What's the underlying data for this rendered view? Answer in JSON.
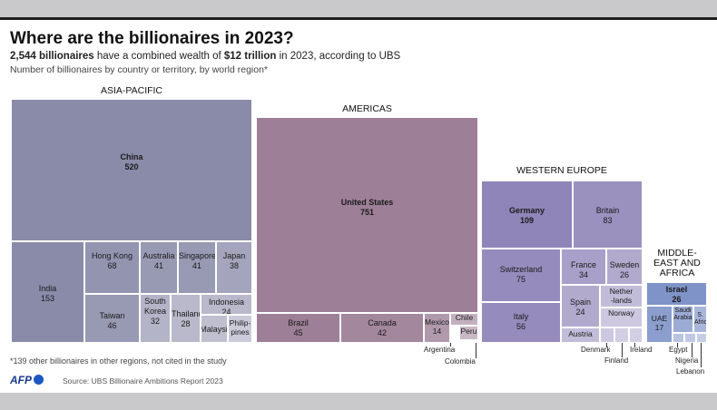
{
  "header": {
    "title": "Where are the billionaires in 2023?",
    "subtitle_count": "2,544 billionaires",
    "subtitle_mid": " have a combined wealth of ",
    "subtitle_wealth": "$12 trillion",
    "subtitle_end": " in 2023, according to UBS",
    "description": "Number of billionaires by country or territory, by world region*"
  },
  "footer": {
    "footnote": "*139 other billionaires in other regions, not cited in the study",
    "logo": "AFP",
    "source": "Source: UBS Billionaire Ambitions Report 2023"
  },
  "colors": {
    "asia": "#8a8ba9",
    "americas": "#9d7f97",
    "europe": "#8f85b8",
    "mea": "#7f93c8"
  },
  "chart_data": {
    "type": "treemap",
    "title": "Where are the billionaires in 2023?",
    "total_billionaires": 2544,
    "regions": [
      {
        "name": "ASIA-PACIFIC",
        "items": [
          {
            "label": "China",
            "value": 520,
            "bold": true
          },
          {
            "label": "India",
            "value": 153
          },
          {
            "label": "Hong Kong",
            "value": 68
          },
          {
            "label": "Australia",
            "value": 41
          },
          {
            "label": "Singapore",
            "value": 41
          },
          {
            "label": "Japan",
            "value": 38
          },
          {
            "label": "Taiwan",
            "value": 46
          },
          {
            "label": "South Korea",
            "value": 32
          },
          {
            "label": "Thailand",
            "value": 28
          },
          {
            "label": "Indonesia",
            "value": 24
          },
          {
            "label": "Malaysia",
            "value": null
          },
          {
            "label": "Philip-pines",
            "value": null
          }
        ]
      },
      {
        "name": "AMERICAS",
        "items": [
          {
            "label": "United States",
            "value": 751,
            "bold": true
          },
          {
            "label": "Brazil",
            "value": 45
          },
          {
            "label": "Canada",
            "value": 42
          },
          {
            "label": "Mexico",
            "value": 14
          },
          {
            "label": "Chile",
            "value": null
          },
          {
            "label": "Peru",
            "value": null
          },
          {
            "label": "Argentina",
            "value": null
          },
          {
            "label": "Colombia",
            "value": null
          }
        ]
      },
      {
        "name": "WESTERN EUROPE",
        "items": [
          {
            "label": "Germany",
            "value": 109,
            "bold": true
          },
          {
            "label": "Britain",
            "value": 83
          },
          {
            "label": "Switzerland",
            "value": 75
          },
          {
            "label": "France",
            "value": 34
          },
          {
            "label": "Sweden",
            "value": 26
          },
          {
            "label": "Italy",
            "value": 56
          },
          {
            "label": "Spain",
            "value": 24
          },
          {
            "label": "Nether-lands",
            "value": null
          },
          {
            "label": "Norway",
            "value": null
          },
          {
            "label": "Austria",
            "value": null
          },
          {
            "label": "Denmark",
            "value": null
          },
          {
            "label": "Finland",
            "value": null
          },
          {
            "label": "Ireland",
            "value": null
          }
        ]
      },
      {
        "name": "MIDDLE-EAST AND AFRICA",
        "items": [
          {
            "label": "Israel",
            "value": 26,
            "bold": true
          },
          {
            "label": "UAE",
            "value": 17
          },
          {
            "label": "Saudi Arabia",
            "value": null
          },
          {
            "label": "S. Africa",
            "value": null
          },
          {
            "label": "Egypt",
            "value": null
          },
          {
            "label": "Nigeria",
            "value": null
          },
          {
            "label": "Lebanon",
            "value": null
          }
        ]
      }
    ]
  }
}
